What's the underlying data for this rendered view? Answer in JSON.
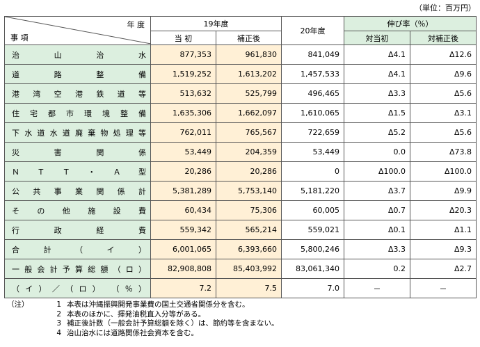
{
  "unit_label": "（単位：百万円）",
  "header": {
    "corner_year": "年 度",
    "corner_item": "事 項",
    "fy19": "19年度",
    "fy19_initial": "当 初",
    "fy19_supplementary": "補正後",
    "fy20": "20年度",
    "growth": "伸び率（％）",
    "growth_vs_initial": "対当初",
    "growth_vs_supplementary": "対補正後"
  },
  "rows": [
    {
      "label": "治山治水",
      "initial": "877,353",
      "supp": "961,830",
      "fy20": "841,049",
      "g1": "Δ4.1",
      "g2": "Δ12.6"
    },
    {
      "label": "道路整備",
      "initial": "1,519,252",
      "supp": "1,613,202",
      "fy20": "1,457,533",
      "g1": "Δ4.1",
      "g2": "Δ9.6"
    },
    {
      "label": "港湾空港鉄道等",
      "initial": "513,632",
      "supp": "525,799",
      "fy20": "496,465",
      "g1": "Δ3.3",
      "g2": "Δ5.6"
    },
    {
      "label": "住宅都市環境整備",
      "initial": "1,635,306",
      "supp": "1,662,097",
      "fy20": "1,610,065",
      "g1": "Δ1.5",
      "g2": "Δ3.1"
    },
    {
      "label": "下水道水道廃棄物処理等",
      "initial": "762,011",
      "supp": "765,567",
      "fy20": "722,659",
      "g1": "Δ5.2",
      "g2": "Δ5.6"
    },
    {
      "label": "災害関係",
      "initial": "53,449",
      "supp": "204,359",
      "fy20": "53,449",
      "g1": "0.0",
      "g2": "Δ73.8"
    },
    {
      "label": "ＮＴＴ・Ａ型",
      "initial": "20,286",
      "supp": "20,286",
      "fy20": "0",
      "g1": "Δ100.0",
      "g2": "Δ100.0"
    },
    {
      "label": "公共事業関係計",
      "initial": "5,381,289",
      "supp": "5,753,140",
      "fy20": "5,181,220",
      "g1": "Δ3.7",
      "g2": "Δ9.9"
    },
    {
      "label": "その他施設費",
      "initial": "60,434",
      "supp": "75,306",
      "fy20": "60,005",
      "g1": "Δ0.7",
      "g2": "Δ20.3"
    },
    {
      "label": "行政経費",
      "initial": "559,342",
      "supp": "565,214",
      "fy20": "559,021",
      "g1": "Δ0.1",
      "g2": "Δ1.1"
    },
    {
      "label": "合計（イ）",
      "initial": "6,001,065",
      "supp": "6,393,660",
      "fy20": "5,800,246",
      "g1": "Δ3.3",
      "g2": "Δ9.3"
    },
    {
      "label": "一般会計予算総額（ロ）",
      "initial": "82,908,808",
      "supp": "85,403,992",
      "fy20": "83,061,340",
      "g1": "0.2",
      "g2": "Δ2.7"
    },
    {
      "label": "（イ）／（ロ）　（％）",
      "initial": "7.2",
      "supp": "7.5",
      "fy20": "7.0",
      "g1": "－",
      "g2": "－"
    }
  ],
  "notes": {
    "prefix": "（注）",
    "items": [
      {
        "n": "1",
        "text": "本表は沖縄振興開発事業費の国土交通省関係分を含む。"
      },
      {
        "n": "2",
        "text": "本表のほかに、揮発油税直入分等がある。"
      },
      {
        "n": "3",
        "text": "補正後計数（一般会計予算総額を除く）は、節約等を含まない。"
      },
      {
        "n": "4",
        "text": "治山治水には道路関係社会資本を含む。"
      }
    ]
  }
}
